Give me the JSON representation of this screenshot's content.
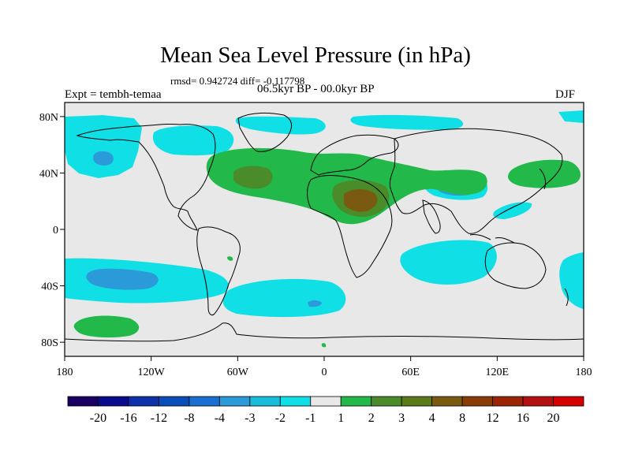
{
  "title": "Mean Sea Level Pressure (in hPa)",
  "stats": "rmsd= 0.942724 diff= -0.117798",
  "experiment": "Expt = tembh-temaa",
  "period": "06.5kyr BP - 00.0kyr BP",
  "season": "DJF",
  "axes": {
    "lon_labels": [
      "180",
      "120W",
      "60W",
      "0",
      "60E",
      "120E",
      "180"
    ],
    "lat_labels": [
      "80N",
      "40N",
      "0",
      "40S",
      "80S"
    ]
  },
  "colorbar": {
    "labels": [
      "-20",
      "-16",
      "-12",
      "-8",
      "-4",
      "-3",
      "-2",
      "-1",
      "1",
      "2",
      "3",
      "4",
      "8",
      "12",
      "16",
      "20"
    ],
    "colors": [
      "#1a0060",
      "#0a0a8c",
      "#0d2fa8",
      "#0a4cb8",
      "#1a6ed0",
      "#2a9ad8",
      "#1abcdc",
      "#10e0e6",
      "#e8e8e8",
      "#22b84a",
      "#4a8c2a",
      "#5a7a1c",
      "#7a5a10",
      "#8a3c08",
      "#9a2404",
      "#b41010",
      "#d40000"
    ]
  },
  "map_colors": {
    "background": "#e8e8e8",
    "anomaly_neg_1": "#10e0e6",
    "anomaly_neg_2": "#1abcdc",
    "anomaly_neg_3": "#2a9ad8",
    "anomaly_neg_4": "#1a6ed0",
    "anomaly_neg_8": "#0a4cb8",
    "anomaly_pos_1": "#22b84a",
    "anomaly_pos_3": "#4a8c2a",
    "anomaly_pos_4": "#5a7a1c",
    "anomaly_pos_8": "#7a5a10"
  }
}
